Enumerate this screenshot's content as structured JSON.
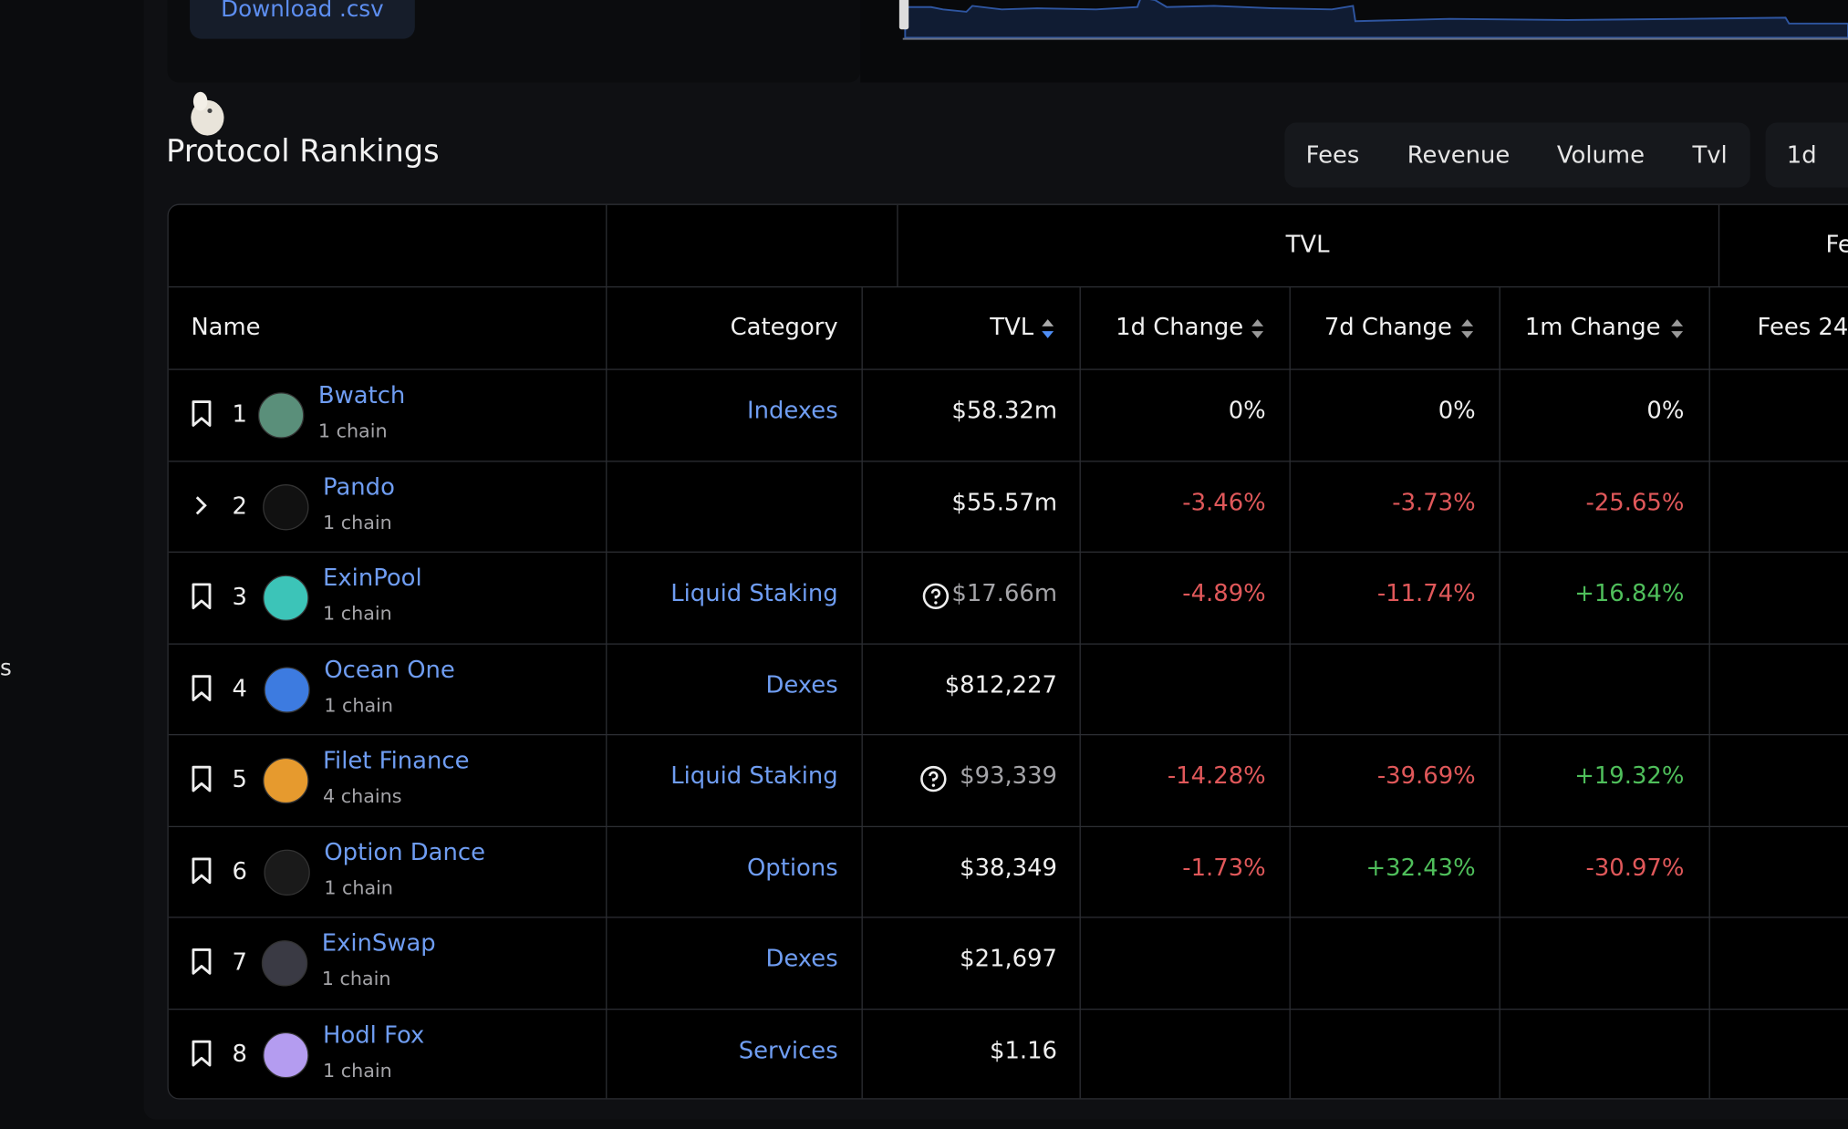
{
  "sidebar_fragment": "s",
  "download_button": "Download .csv",
  "section_title": "Protocol Rankings",
  "metric_tabs": [
    "Fees",
    "Revenue",
    "Volume",
    "Tvl"
  ],
  "period_tabs": [
    "1d"
  ],
  "table": {
    "group_headers": [
      "TVL",
      "Fe"
    ],
    "columns": [
      "Name",
      "Category",
      "TVL",
      "1d Change",
      "7d Change",
      "1m Change",
      "Fees 24"
    ],
    "rows": [
      {
        "rank": "1",
        "name": "Bwatch",
        "chains": "1 chain",
        "category": "Indexes",
        "tvl": "$58.32m",
        "d1": "0%",
        "d7": "0%",
        "m1": "0%"
      },
      {
        "rank": "2",
        "name": "Pando",
        "chains": "1 chain",
        "category": "",
        "tvl": "$55.57m",
        "d1": "-3.46%",
        "d7": "-3.73%",
        "m1": "-25.65%"
      },
      {
        "rank": "3",
        "name": "ExinPool",
        "chains": "1 chain",
        "category": "Liquid Staking",
        "tvl": "$17.66m",
        "d1": "-4.89%",
        "d7": "-11.74%",
        "m1": "+16.84%",
        "tvl_uncertain": true
      },
      {
        "rank": "4",
        "name": "Ocean One",
        "chains": "1 chain",
        "category": "Dexes",
        "tvl": "$812,227"
      },
      {
        "rank": "5",
        "name": "Filet Finance",
        "chains": "4 chains",
        "category": "Liquid Staking",
        "tvl": "$93,339",
        "d1": "-14.28%",
        "d7": "-39.69%",
        "m1": "+19.32%",
        "tvl_uncertain": true
      },
      {
        "rank": "6",
        "name": "Option Dance",
        "chains": "1 chain",
        "category": "Options",
        "tvl": "$38,349",
        "d1": "-1.73%",
        "d7": "+32.43%",
        "m1": "-30.97%"
      },
      {
        "rank": "7",
        "name": "ExinSwap",
        "chains": "1 chain",
        "category": "Dexes",
        "tvl": "$21,697"
      },
      {
        "rank": "8",
        "name": "Hodl Fox",
        "chains": "1 chain",
        "category": "Services",
        "tvl": "$1.16"
      }
    ]
  }
}
